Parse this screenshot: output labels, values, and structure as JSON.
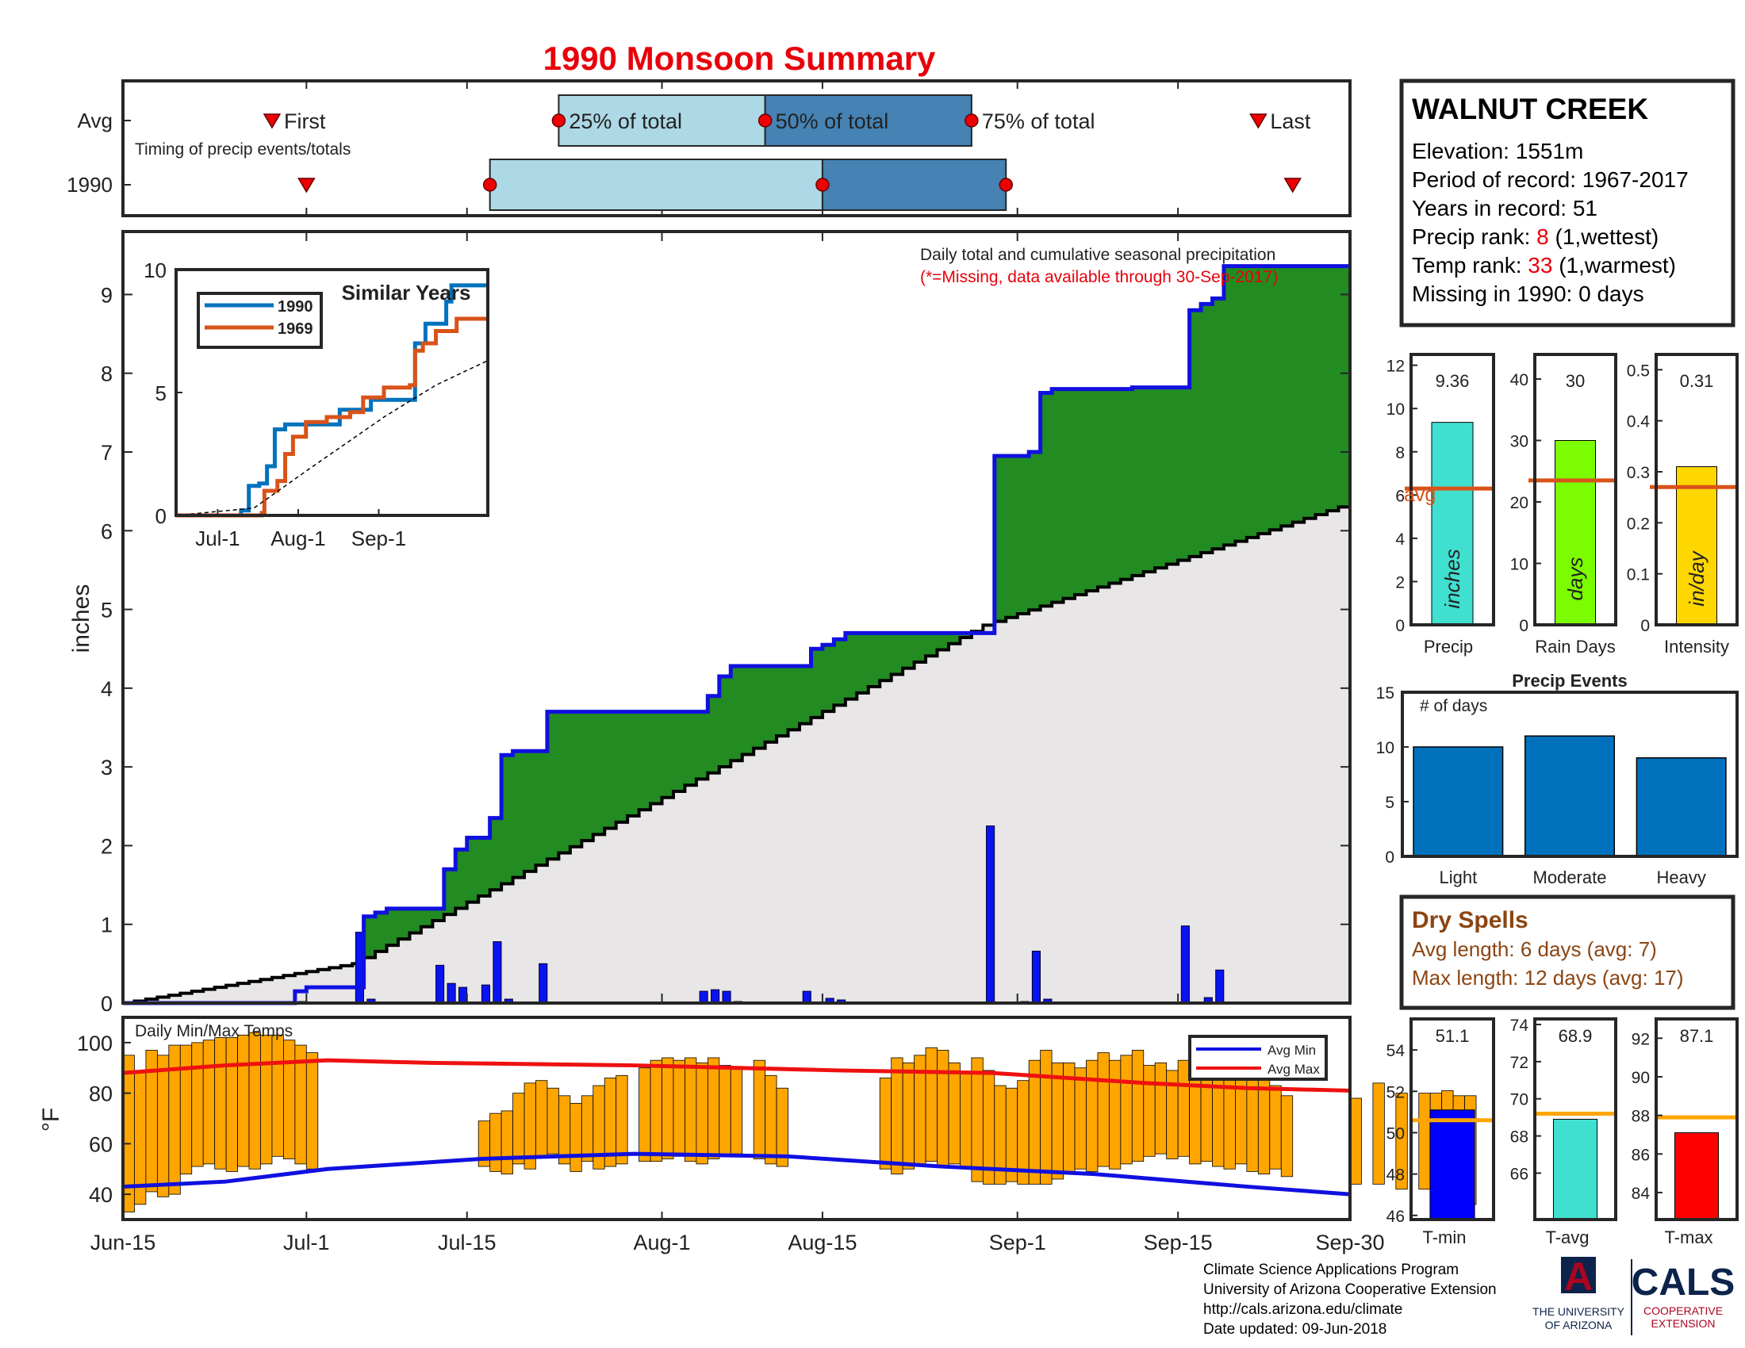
{
  "title": "1990 Monsoon Summary",
  "colors": {
    "title": "#e8000b",
    "frame": "#262626",
    "cum_fill": "#228b22",
    "cum_line": "#1010e0",
    "avg_fill": "#e8e6e6",
    "daily_bar": "#0a14f0",
    "temp_bar": "#ffa500",
    "avg_max": "#ee1111",
    "avg_min": "#1010e0",
    "box_light": "#add8e6",
    "box_dark": "#4682b4",
    "avg_line": "#d95319",
    "dry": "#8b4513",
    "events": "#0072bd",
    "precip_bar": "#40e0d0",
    "raindays_bar": "#7cfc00",
    "intensity_bar": "#ffd700",
    "tmin_bar": "#0000ff",
    "tavg_bar": "#40e0d0",
    "tmax_bar": "#ff0000",
    "temp_avg_line": "#ffa500",
    "logo_navy": "#0c234b",
    "logo_red": "#ab0520"
  },
  "timing": {
    "row_labels": [
      "Avg",
      "1990"
    ],
    "caption": "Timing of precip events/totals",
    "avg_labels": [
      "First",
      "25% of total",
      "50% of total",
      "75% of total",
      "Last"
    ],
    "avg_values": {
      "first": "Jun-28",
      "q25": "Jul-23",
      "q50": "Aug-10",
      "q75": "Aug-28",
      "last": "Sep-22"
    },
    "y1990_values": {
      "first": "Jul-1",
      "q25": "Jul-17",
      "q50": "Aug-15",
      "q75": "Aug-31",
      "last": "Sep-25"
    }
  },
  "chart_data": [
    {
      "type": "area",
      "name": "main",
      "title": "Daily total and cumulative seasonal precipitation",
      "subtitle": "(*=Missing, data available through 30-Sep-2017)",
      "ylabel": "inches",
      "ylim": [
        0,
        9.8
      ],
      "yticks": [
        "0",
        "1",
        "2",
        "3",
        "4",
        "5",
        "6",
        "7",
        "8",
        "9"
      ],
      "x_ticks": [
        "Jun-15",
        "Jul-1",
        "Jul-15",
        "Aug-1",
        "Aug-15",
        "Sep-1",
        "Sep-15",
        "Sep-30"
      ],
      "xlim_days": [
        "Jun-15",
        "Sep-30"
      ],
      "cumulative_1990": [
        [
          "Jun-15",
          0
        ],
        [
          "Jun-30",
          0.15
        ],
        [
          "Jul-1",
          0.2
        ],
        [
          "Jul-5",
          0.2
        ],
        [
          "Jul-6",
          1.1
        ],
        [
          "Jul-7",
          1.15
        ],
        [
          "Jul-8",
          1.2
        ],
        [
          "Jul-12",
          1.2
        ],
        [
          "Jul-13",
          1.7
        ],
        [
          "Jul-14",
          1.95
        ],
        [
          "Jul-15",
          2.1
        ],
        [
          "Jul-17",
          2.35
        ],
        [
          "Jul-18",
          3.15
        ],
        [
          "Jul-19",
          3.2
        ],
        [
          "Jul-22",
          3.7
        ],
        [
          "Aug-5",
          3.9
        ],
        [
          "Aug-6",
          4.15
        ],
        [
          "Aug-7",
          4.28
        ],
        [
          "Aug-13",
          4.28
        ],
        [
          "Aug-14",
          4.5
        ],
        [
          "Aug-15",
          4.55
        ],
        [
          "Aug-16",
          4.62
        ],
        [
          "Aug-17",
          4.7
        ],
        [
          "Aug-29",
          4.7
        ],
        [
          "Aug-30",
          6.95
        ],
        [
          "Sep-2",
          7.0
        ],
        [
          "Sep-3",
          7.75
        ],
        [
          "Sep-4",
          7.8
        ],
        [
          "Sep-11",
          7.82
        ],
        [
          "Sep-15",
          7.82
        ],
        [
          "Sep-16",
          8.8
        ],
        [
          "Sep-17",
          8.88
        ],
        [
          "Sep-18",
          8.95
        ],
        [
          "Sep-19",
          9.36
        ],
        [
          "Sep-30",
          9.36
        ]
      ],
      "cumulative_avg_endpoints": [
        [
          "Jun-15",
          0
        ],
        [
          "Jul-5",
          0.5
        ],
        [
          "Aug-29",
          4.8
        ],
        [
          "Sep-30",
          6.35
        ]
      ],
      "daily_1990": [
        [
          "Jun-30",
          0.01
        ],
        [
          "Jul-1",
          0.02
        ],
        [
          "Jul-6",
          0.9
        ],
        [
          "Jul-7",
          0.05
        ],
        [
          "Jul-13",
          0.48
        ],
        [
          "Jul-14",
          0.25
        ],
        [
          "Jul-15",
          0.2
        ],
        [
          "Jul-17",
          0.23
        ],
        [
          "Jul-18",
          0.78
        ],
        [
          "Jul-19",
          0.05
        ],
        [
          "Jul-22",
          0.5
        ],
        [
          "Aug-5",
          0.15
        ],
        [
          "Aug-6",
          0.17
        ],
        [
          "Aug-7",
          0.15
        ],
        [
          "Aug-8",
          0.02
        ],
        [
          "Aug-14",
          0.15
        ],
        [
          "Aug-16",
          0.06
        ],
        [
          "Aug-17",
          0.04
        ],
        [
          "Aug-30",
          2.25
        ],
        [
          "Sep-2",
          0.02
        ],
        [
          "Sep-3",
          0.66
        ],
        [
          "Sep-4",
          0.05
        ],
        [
          "Sep-16",
          0.98
        ],
        [
          "Sep-18",
          0.07
        ],
        [
          "Sep-19",
          0.42
        ]
      ]
    },
    {
      "type": "line",
      "name": "similar-years",
      "title": "Similar Years",
      "xticks": [
        "Jul-1",
        "Aug-1",
        "Sep-1"
      ],
      "yticks": [
        "0",
        "5",
        "10"
      ],
      "ylim": [
        0,
        10
      ],
      "series": [
        {
          "name": "1990",
          "color": "#0072bd",
          "values": [
            [
              0,
              0
            ],
            [
              25,
              0.2
            ],
            [
              28,
              1.2
            ],
            [
              32,
              1.3
            ],
            [
              35,
              2.0
            ],
            [
              38,
              3.5
            ],
            [
              42,
              3.7
            ],
            [
              60,
              3.7
            ],
            [
              63,
              4.3
            ],
            [
              70,
              4.3
            ],
            [
              75,
              4.7
            ],
            [
              90,
              4.7
            ],
            [
              92,
              7.0
            ],
            [
              96,
              7.8
            ],
            [
              103,
              7.8
            ],
            [
              104,
              8.7
            ],
            [
              106,
              9.36
            ],
            [
              120,
              9.36
            ]
          ]
        },
        {
          "name": "1969",
          "color": "#d95319",
          "values": [
            [
              0,
              0
            ],
            [
              33,
              0.1
            ],
            [
              34,
              1.0
            ],
            [
              39,
              1.4
            ],
            [
              42,
              2.5
            ],
            [
              45,
              3.2
            ],
            [
              50,
              3.8
            ],
            [
              58,
              4.0
            ],
            [
              67,
              4.2
            ],
            [
              72,
              4.8
            ],
            [
              80,
              5.2
            ],
            [
              90,
              5.3
            ],
            [
              92,
              6.7
            ],
            [
              95,
              7.0
            ],
            [
              100,
              7.5
            ],
            [
              108,
              8.0
            ],
            [
              120,
              8.0
            ]
          ]
        },
        {
          "name": "avg",
          "color": "#000000",
          "dashed": true,
          "values": [
            [
              0,
              0
            ],
            [
              30,
              0.3
            ],
            [
              50,
              1.8
            ],
            [
              80,
              4.0
            ],
            [
              100,
              5.3
            ],
            [
              120,
              6.3
            ]
          ]
        }
      ]
    },
    {
      "type": "bar",
      "name": "temperature",
      "title": "Daily Min/Max Temps",
      "ylabel": "°F",
      "ylim": [
        30,
        110
      ],
      "yticks": [
        "40",
        "60",
        "80",
        "100"
      ],
      "legend": [
        "Avg Min",
        "Avg Max"
      ],
      "legend_position": "top-right",
      "x_ticks": [
        "Jun-15",
        "Jul-1",
        "Jul-15",
        "Aug-1",
        "Aug-15",
        "Sep-1",
        "Sep-15",
        "Sep-30"
      ],
      "daily_min": [
        33,
        36,
        41,
        39,
        40,
        48,
        51,
        52,
        50,
        49,
        51,
        50,
        52,
        55,
        54,
        52,
        50,
        null,
        null,
        null,
        null,
        null,
        null,
        null,
        null,
        null,
        null,
        null,
        null,
        null,
        null,
        51,
        49,
        48,
        52,
        50,
        55,
        56,
        52,
        49,
        53,
        50,
        51,
        52,
        null,
        53,
        53,
        54,
        55,
        53,
        52,
        54,
        55,
        56,
        null,
        54,
        52,
        51,
        null,
        null,
        null,
        null,
        null,
        null,
        null,
        null,
        50,
        48,
        50,
        52,
        53,
        51,
        52,
        51,
        45,
        44,
        44,
        45,
        44,
        44,
        44,
        46,
        48,
        50,
        49,
        51,
        50,
        52,
        53,
        55,
        56,
        54,
        55,
        52,
        53,
        51,
        50,
        52,
        49,
        48,
        50,
        47,
        null,
        null,
        null,
        null,
        null,
        44,
        null,
        44,
        null,
        42,
        null,
        42,
        43,
        40,
        36,
        36
      ],
      "daily_max": [
        95,
        88,
        97,
        95,
        99,
        99,
        100,
        101,
        102,
        102,
        103,
        104,
        103,
        103,
        101,
        99,
        96,
        95,
        null,
        null,
        null,
        null,
        null,
        null,
        null,
        null,
        null,
        null,
        null,
        null,
        null,
        69,
        72,
        73,
        80,
        84,
        85,
        82,
        79,
        76,
        79,
        83,
        86,
        87,
        89,
        90,
        93,
        94,
        93,
        94,
        92,
        94,
        91,
        90,
        null,
        93,
        87,
        82,
        null,
        null,
        null,
        null,
        null,
        null,
        null,
        null,
        86,
        94,
        92,
        95,
        98,
        97,
        92,
        88,
        94,
        89,
        83,
        82,
        85,
        93,
        97,
        92,
        92,
        90,
        93,
        96,
        93,
        95,
        97,
        91,
        92,
        89,
        93,
        94,
        97,
        96,
        92,
        91,
        87,
        87,
        83,
        79,
        null,
        null,
        null,
        null,
        null,
        78,
        null,
        84,
        null,
        80,
        null,
        80,
        80,
        81,
        79,
        79
      ],
      "avg_max": [
        [
          0,
          88
        ],
        [
          10,
          91
        ],
        [
          20,
          93
        ],
        [
          30,
          92
        ],
        [
          50,
          91
        ],
        [
          70,
          89
        ],
        [
          85,
          88
        ],
        [
          100,
          84
        ],
        [
          110,
          82
        ],
        [
          120,
          81
        ]
      ],
      "avg_min": [
        [
          0,
          43
        ],
        [
          10,
          45
        ],
        [
          20,
          50
        ],
        [
          35,
          54
        ],
        [
          50,
          56
        ],
        [
          65,
          55
        ],
        [
          80,
          51
        ],
        [
          95,
          48
        ],
        [
          110,
          43
        ],
        [
          120,
          40
        ]
      ]
    },
    {
      "type": "bar",
      "name": "season-bars",
      "categories": [
        "Precip",
        "Rain Days",
        "Intensity"
      ],
      "values": [
        9.36,
        30,
        0.31
      ],
      "value_labels": [
        "9.36",
        "30",
        "0.31"
      ],
      "units": [
        "inches",
        "days",
        "in/day"
      ],
      "averages": [
        6.3,
        23.5,
        0.27
      ],
      "avg_label": "avg",
      "ylims": [
        [
          0,
          12.5
        ],
        [
          0,
          44
        ],
        [
          0,
          0.53
        ]
      ],
      "yticks": [
        [
          "0",
          "2",
          "4",
          "6",
          "8",
          "10",
          "12"
        ],
        [
          "0",
          "10",
          "20",
          "30",
          "40"
        ],
        [
          "0",
          "0.1",
          "0.2",
          "0.3",
          "0.4",
          "0.5"
        ]
      ]
    },
    {
      "type": "bar",
      "name": "precip-events",
      "title": "Precip Events",
      "ylabel_inside": "# of days",
      "categories": [
        "Light",
        "Moderate",
        "Heavy"
      ],
      "values": [
        10,
        11,
        9
      ],
      "ylim": [
        0,
        15
      ],
      "yticks": [
        "0",
        "5",
        "10",
        "15"
      ]
    },
    {
      "type": "bar",
      "name": "temp-bars",
      "categories": [
        "T-min",
        "T-avg",
        "T-max"
      ],
      "values": [
        51.1,
        68.9,
        87.1
      ],
      "value_labels": [
        "51.1",
        "68.9",
        "87.1"
      ],
      "averages": [
        50.6,
        69.2,
        87.9
      ],
      "ylims": [
        [
          45.8,
          55.5
        ],
        [
          63.5,
          74.3
        ],
        [
          82.6,
          93.0
        ]
      ],
      "yticks": [
        [
          "46",
          "48",
          "50",
          "52",
          "54"
        ],
        [
          "66",
          "68",
          "70",
          "72",
          "74"
        ],
        [
          "84",
          "86",
          "88",
          "90",
          "92"
        ]
      ]
    }
  ],
  "station": {
    "name": "WALNUT CREEK",
    "lines": [
      {
        "text": "Elevation: 1551m"
      },
      {
        "text": "Period of record: 1967-2017"
      },
      {
        "text": "Years in record: 51"
      },
      {
        "pre": "Precip rank: ",
        "hl": "8",
        "post": " (1,wettest)"
      },
      {
        "pre": "Temp rank: ",
        "hl": "33",
        "post": " (1,warmest)"
      },
      {
        "text": "Missing in 1990: 0 days"
      }
    ]
  },
  "dry_spells": {
    "title": "Dry Spells",
    "avg": "Avg length: 6 days (avg: 7)",
    "max": "Max length: 12 days (avg: 17)"
  },
  "footer": {
    "lines": [
      "Climate Science Applications Program",
      "University of Arizona Cooperative Extension",
      "http://cals.arizona.edu/climate",
      " Date updated: 09-Jun-2018"
    ]
  },
  "logos": {
    "ua_letter": "A",
    "ua_line1": "THE UNIVERSITY",
    "ua_line2": "OF ARIZONA",
    "cals": "CALS",
    "cals_line1": "COOPERATIVE",
    "cals_line2": "EXTENSION"
  }
}
